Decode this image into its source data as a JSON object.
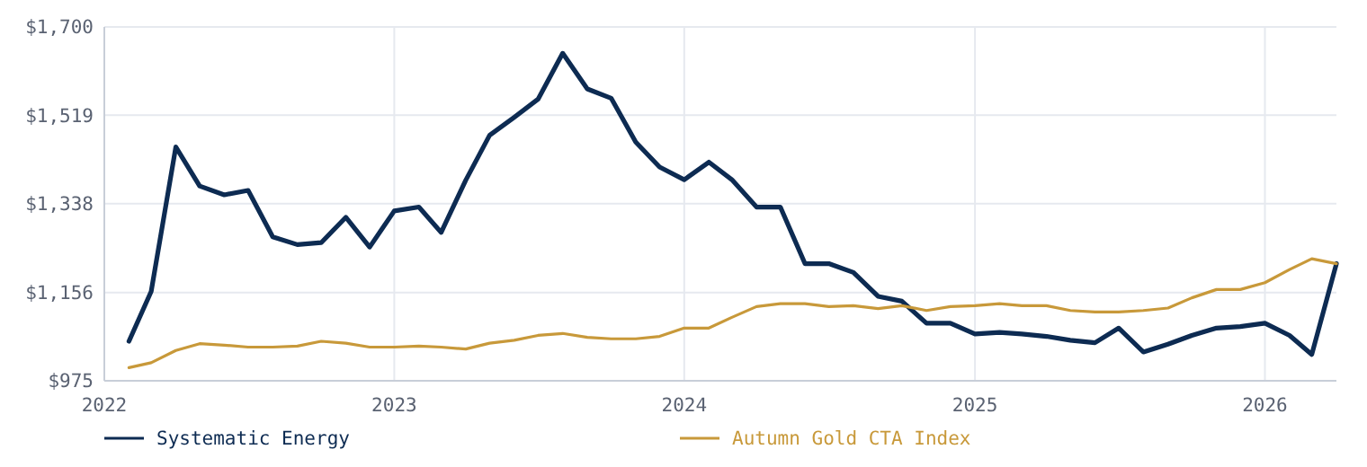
{
  "chart_data": {
    "type": "line",
    "x": [
      "2022-02",
      "2022-03",
      "2022-04",
      "2022-05",
      "2022-06",
      "2022-07",
      "2022-08",
      "2022-09",
      "2022-10",
      "2022-11",
      "2022-12",
      "2023-01",
      "2023-02",
      "2023-03",
      "2023-04",
      "2023-05",
      "2023-06",
      "2023-07",
      "2023-08",
      "2023-09",
      "2023-10",
      "2023-11",
      "2023-12",
      "2024-01",
      "2024-02",
      "2024-03",
      "2024-04",
      "2024-05",
      "2024-06",
      "2024-07",
      "2024-08",
      "2024-09",
      "2024-10",
      "2024-11",
      "2024-12",
      "2025-01",
      "2025-02",
      "2025-03",
      "2025-04",
      "2025-05",
      "2025-06",
      "2025-07",
      "2025-08",
      "2025-09",
      "2025-10",
      "2025-11",
      "2025-12",
      "2026-01",
      "2026-02",
      "2026-03",
      "2026-04"
    ],
    "series": [
      {
        "name": "Systematic Energy",
        "color": "#0d2b52",
        "values": [
          1056,
          1158,
          1454,
          1374,
          1356,
          1365,
          1270,
          1254,
          1258,
          1310,
          1249,
          1323,
          1331,
          1279,
          1386,
          1478,
          1515,
          1552,
          1646,
          1573,
          1554,
          1464,
          1413,
          1387,
          1423,
          1387,
          1331,
          1331,
          1215,
          1215,
          1197,
          1148,
          1138,
          1093,
          1093,
          1071,
          1074,
          1071,
          1066,
          1058,
          1053,
          1083,
          1034,
          1050,
          1068,
          1083,
          1086,
          1093,
          1068,
          1029,
          1215
        ]
      },
      {
        "name": "Autumn Gold CTA Index",
        "color": "#c8993a",
        "values": [
          1002,
          1012,
          1037,
          1051,
          1048,
          1044,
          1044,
          1046,
          1056,
          1052,
          1044,
          1044,
          1046,
          1044,
          1040,
          1052,
          1058,
          1068,
          1072,
          1064,
          1061,
          1061,
          1066,
          1083,
          1083,
          1105,
          1127,
          1133,
          1133,
          1127,
          1129,
          1123,
          1129,
          1119,
          1127,
          1129,
          1133,
          1129,
          1129,
          1119,
          1116,
          1116,
          1119,
          1124,
          1145,
          1162,
          1162,
          1176,
          1203,
          1225,
          1215
        ]
      }
    ],
    "xlim": [
      "2022-01",
      "2026-04"
    ],
    "xticks": [
      "2022",
      "2023",
      "2024",
      "2025",
      "2026"
    ],
    "ylim": [
      975,
      1700
    ],
    "yticks": [
      {
        "value": 975,
        "label": "$975"
      },
      {
        "value": 1156,
        "label": "$1,156"
      },
      {
        "value": 1338,
        "label": "$1,338"
      },
      {
        "value": 1519,
        "label": "$1,519"
      },
      {
        "value": 1700,
        "label": "$1,700"
      }
    ],
    "grid": true,
    "legend": "bottom",
    "marker": "none",
    "line_style": "solid"
  }
}
